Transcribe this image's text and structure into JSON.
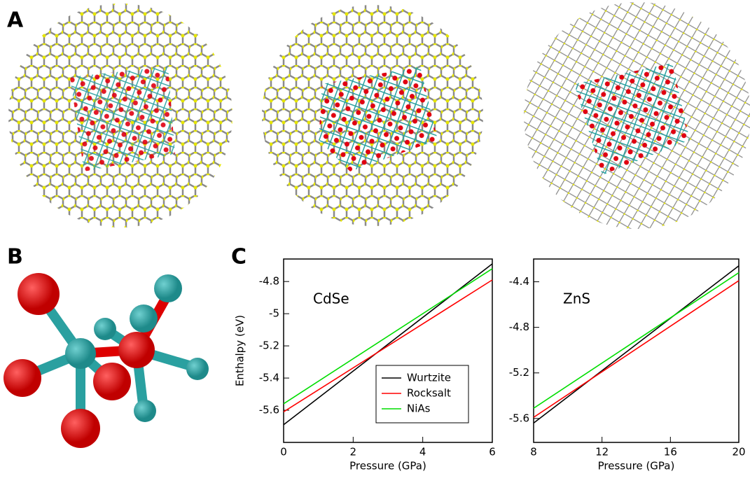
{
  "panel_labels": [
    "A",
    "B",
    "C"
  ],
  "chart_data": [
    {
      "type": "line",
      "annotation": "CdSe",
      "xlabel": "Pressure (GPa)",
      "ylabel": "Enthalpy (eV)",
      "x": [
        0,
        6
      ],
      "xlim": [
        0,
        6
      ],
      "xticks": [
        0,
        2,
        4,
        6
      ],
      "ylim": [
        -5.8,
        -4.66
      ],
      "yticks": [
        -5.6,
        -5.4,
        -5.2,
        -5,
        -4.8
      ],
      "legend": true,
      "series": [
        {
          "name": "Wurtzite",
          "color": "#000000",
          "values": [
            -5.69,
            -4.69
          ]
        },
        {
          "name": "Rocksalt",
          "color": "#ff0000",
          "values": [
            -5.61,
            -4.79
          ]
        },
        {
          "name": "NiAs",
          "color": "#00dd00",
          "values": [
            -5.56,
            -4.72
          ]
        }
      ]
    },
    {
      "type": "line",
      "annotation": "ZnS",
      "xlabel": "Pressure (GPa)",
      "x": [
        8,
        20
      ],
      "xlim": [
        8,
        20
      ],
      "xticks": [
        8,
        12,
        16,
        20
      ],
      "ylim": [
        -5.81,
        -4.2
      ],
      "yticks": [
        -5.6,
        -5.2,
        -4.8,
        -4.4
      ],
      "legend": false,
      "series": [
        {
          "color": "#000000",
          "values": [
            -5.64,
            -4.26
          ]
        },
        {
          "color": "#ff0000",
          "values": [
            -5.59,
            -4.39
          ]
        },
        {
          "color": "#00dd00",
          "values": [
            -5.51,
            -4.32
          ]
        }
      ]
    }
  ]
}
